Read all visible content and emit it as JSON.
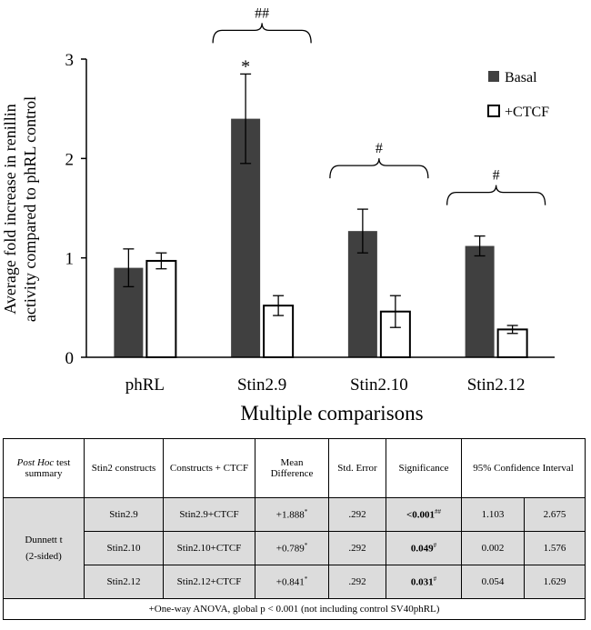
{
  "chart_data": {
    "type": "bar",
    "xlabel": "Multiple comparisons",
    "ylabel_line1": "Average fold increase in renillin",
    "ylabel_line2": "activity compared to phRL control",
    "ylim": [
      0,
      3
    ],
    "yticks": [
      "0",
      "1",
      "2",
      "3"
    ],
    "categories": [
      "phRL",
      "Stin2.9",
      "Stin2.10",
      "Stin2.12"
    ],
    "legend_position": "top-right",
    "series": [
      {
        "name": "Basal",
        "color": "#404040",
        "values": [
          0.9,
          2.4,
          1.27,
          1.12
        ],
        "errors": [
          0.19,
          0.45,
          0.22,
          0.1
        ]
      },
      {
        "name": "+CTCF",
        "color": "#ffffff",
        "values": [
          0.97,
          0.52,
          0.46,
          0.28
        ],
        "errors": [
          0.08,
          0.1,
          0.16,
          0.04
        ]
      }
    ],
    "annotations": [
      {
        "category": "Stin2.9",
        "label": "*",
        "target": "Basal"
      },
      {
        "category": "Stin2.9",
        "label": "##",
        "target": "brace"
      },
      {
        "category": "Stin2.10",
        "label": "#",
        "target": "brace"
      },
      {
        "category": "Stin2.12",
        "label": "#",
        "target": "brace"
      }
    ]
  },
  "table": {
    "header": {
      "summary_italic": "Post Hoc",
      "summary_rest": "test summary",
      "constructs": "Stin2 constructs",
      "constructs_ctcf": "Constructs + CTCF",
      "mean_diff": "Mean Difference",
      "std_error": "Std. Error",
      "significance": "Significance",
      "ci": "95% Confidence Interval"
    },
    "test_name": "Dunnett t",
    "test_sided": "(2-sided)",
    "rows": [
      {
        "construct": "Stin2.9",
        "ctcf": "Stin2.9+CTCF",
        "mean": "+1.888",
        "mean_mark": "*",
        "se": ".292",
        "sig": "<0.001",
        "sig_mark": "##",
        "lower": "1.103",
        "upper": "2.675"
      },
      {
        "construct": "Stin2.10",
        "ctcf": "Stin2.10+CTCF",
        "mean": "+0.789",
        "mean_mark": "*",
        "se": ".292",
        "sig": "0.049",
        "sig_mark": "#",
        "lower": "0.002",
        "upper": "1.576"
      },
      {
        "construct": "Stin2.12",
        "ctcf": "Stin2.12+CTCF",
        "mean": "+0.841",
        "mean_mark": "*",
        "se": ".292",
        "sig": "0.031",
        "sig_mark": "#",
        "lower": "0.054",
        "upper": "1.629"
      }
    ],
    "footer": "+One-way ANOVA,  global p < 0.001 (not including control SV40phRL)"
  }
}
